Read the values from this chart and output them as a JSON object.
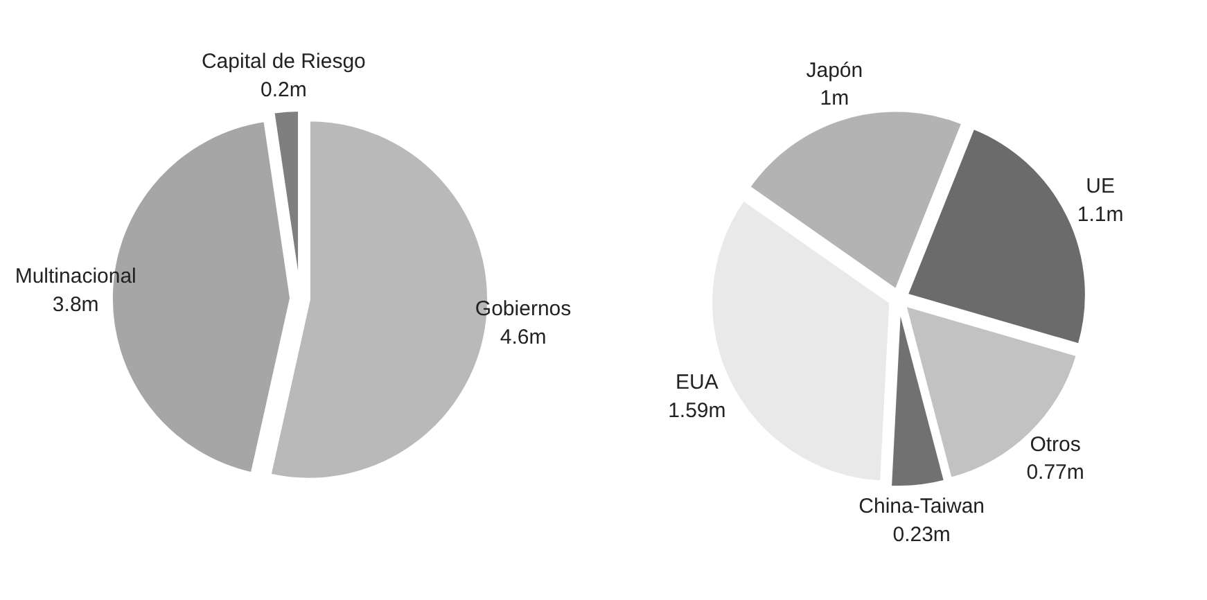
{
  "chart_data": [
    {
      "type": "pie",
      "categories": [
        "Gobiernos",
        "Multinacional",
        "Capital de Riesgo"
      ],
      "values": [
        4.6,
        3.8,
        0.2
      ],
      "value_labels": [
        "4.6m",
        "3.8m",
        "0.2m"
      ],
      "colors": [
        "#b9b9b9",
        "#a6a6a6",
        "#7f7f7f"
      ]
    },
    {
      "type": "pie",
      "categories": [
        "Japón",
        "UE",
        "Otros",
        "China-Taiwan",
        "EUA"
      ],
      "values": [
        1,
        1.1,
        0.77,
        0.23,
        1.59
      ],
      "value_labels": [
        "1m",
        "1.1m",
        "0.77m",
        "0.23m",
        "1.59m"
      ],
      "colors": [
        "#b3b3b3",
        "#6b6b6b",
        "#c2c2c2",
        "#717171",
        "#e9e9e9"
      ]
    }
  ]
}
